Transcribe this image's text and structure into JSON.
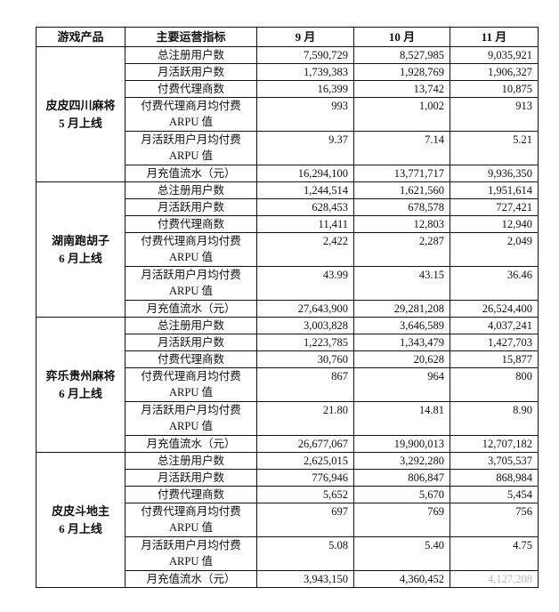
{
  "headers": [
    "游戏产品",
    "主要运营指标",
    "9 月",
    "10 月",
    "11 月"
  ],
  "metrics": [
    [
      "总注册用户数"
    ],
    [
      "月活跃用户数"
    ],
    [
      "付费代理商数"
    ],
    [
      "付费代理商月均付费",
      "ARPU 值"
    ],
    [
      "月活跃用户月均付费",
      "ARPU 值"
    ],
    [
      "月充值流水（元）"
    ]
  ],
  "games": [
    {
      "name": [
        "皮皮四川麻将",
        "5 月上线"
      ],
      "rows": [
        [
          "7,590,729",
          "8,527,985",
          "9,035,921"
        ],
        [
          "1,739,383",
          "1,928,769",
          "1,906,327"
        ],
        [
          "16,399",
          "13,742",
          "10,875"
        ],
        [
          "993",
          "1,002",
          "913"
        ],
        [
          "9.37",
          "7.14",
          "5.21"
        ],
        [
          "16,294,100",
          "13,771,717",
          "9,936,350"
        ]
      ]
    },
    {
      "name": [
        "湖南跑胡子",
        "6 月上线"
      ],
      "rows": [
        [
          "1,244,514",
          "1,621,560",
          "1,951,614"
        ],
        [
          "628,453",
          "678,578",
          "727,421"
        ],
        [
          "11,411",
          "12,803",
          "12,940"
        ],
        [
          "2,422",
          "2,287",
          "2,049"
        ],
        [
          "43.99",
          "43.15",
          "36.46"
        ],
        [
          "27,643,900",
          "29,281,208",
          "26,524,400"
        ]
      ]
    },
    {
      "name": [
        "弈乐贵州麻将",
        "6 月上线"
      ],
      "rows": [
        [
          "3,003,828",
          "3,646,589",
          "4,037,241"
        ],
        [
          "1,223,785",
          "1,343,479",
          "1,427,703"
        ],
        [
          "30,760",
          "20,628",
          "15,877"
        ],
        [
          "867",
          "964",
          "800"
        ],
        [
          "21.80",
          "14.81",
          "8.90"
        ],
        [
          "26,677,067",
          "19,900,013",
          "12,707,182"
        ]
      ]
    },
    {
      "name": [
        "皮皮斗地主",
        "6 月上线"
      ],
      "rows": [
        [
          "2,625,015",
          "3,292,280",
          "3,705,537"
        ],
        [
          "776,946",
          "806,847",
          "868,984"
        ],
        [
          "5,652",
          "5,670",
          "5,454"
        ],
        [
          "697",
          "769",
          "756"
        ],
        [
          "5.08",
          "5.40",
          "4.75"
        ],
        [
          "3,943,150",
          "4,360,452",
          "4,127,208"
        ]
      ]
    }
  ]
}
